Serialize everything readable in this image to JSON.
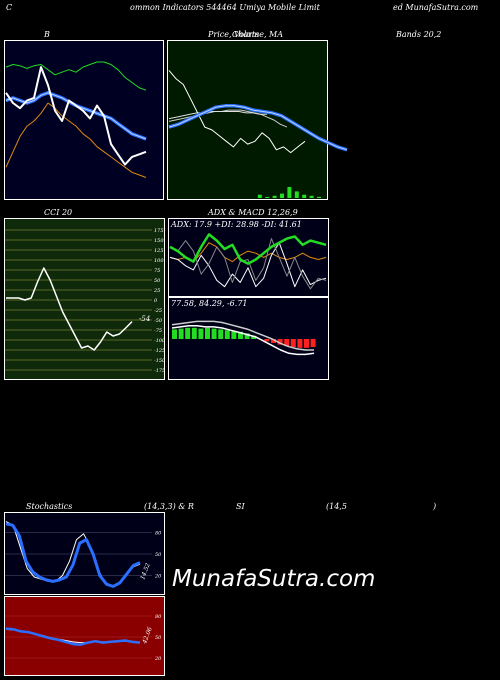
{
  "header": {
    "left": "C",
    "center": "ommon  Indicators 544464  Umiya  Mobile  Limit",
    "right": "ed MunafaSutra.com"
  },
  "labels": {
    "bb_title": "B",
    "price_title": "Price,  Volume,  MA",
    "price_overlap": "Charts",
    "bands_title": "Bands 20,2",
    "cci_title": "CCI 20",
    "adx_title": "ADX  & MACD 12,26,9",
    "adx_values": "ADX: 17.9 +DI: 28.98 -DI: 41.61",
    "macd_values": "77.58,  84.29,  -6.71",
    "cci_value": "-54",
    "stoch_left": "Stochastics",
    "stoch_mid": "(14,3,3) & R",
    "stoch_si": "SI",
    "stoch_params": "(14,5",
    "stoch_close": ")",
    "stoch_value": "14.52",
    "rsi_value": "42.06"
  },
  "watermark": "MunafaSutra.com",
  "colors": {
    "bb_bg": "#000022",
    "price_bg": "#001a00",
    "cci_bg": "#0f2a0a",
    "adx_bg": "#000018",
    "stoch_bg": "#000018",
    "rsi_bg": "#8a0000",
    "blue": "#2a6fff",
    "green": "#22dd22",
    "orange": "#e08a10",
    "red": "#ff2020"
  },
  "chart_data": [
    {
      "type": "line",
      "name_hint": "bollinger",
      "series": [
        {
          "values": [
            82,
            84,
            83,
            81,
            83,
            84,
            80,
            76,
            78,
            80,
            78,
            82,
            84,
            86,
            86,
            84,
            80,
            74,
            70,
            66,
            64
          ]
        },
        {
          "values": [
            56,
            58,
            56,
            54,
            56,
            60,
            62,
            60,
            58,
            55,
            52,
            50,
            48,
            46,
            44,
            42,
            38,
            34,
            30,
            28,
            26
          ]
        },
        {
          "values": [
            4,
            16,
            28,
            36,
            40,
            46,
            54,
            50,
            44,
            40,
            36,
            30,
            26,
            20,
            16,
            12,
            8,
            4,
            0,
            -2,
            -4
          ]
        },
        {
          "values": [
            62,
            54,
            50,
            56,
            58,
            82,
            68,
            48,
            40,
            56,
            52,
            48,
            42,
            52,
            44,
            22,
            14,
            6,
            12,
            14,
            16
          ]
        }
      ]
    },
    {
      "type": "line",
      "name_hint": "price_volume_ma",
      "series": [
        {
          "values": [
            60,
            54,
            50,
            40,
            30,
            20,
            18,
            14,
            10,
            6,
            12,
            8,
            10,
            16,
            12,
            4,
            6,
            2,
            6,
            10
          ]
        },
        {
          "values": [
            20,
            22,
            25,
            28,
            31,
            34,
            35,
            35,
            34,
            32,
            31,
            30,
            28,
            24,
            20,
            16,
            12,
            9,
            6,
            4
          ]
        },
        {
          "values": [
            24,
            25,
            26,
            27,
            28,
            29,
            30,
            31,
            31,
            32,
            32,
            32,
            31,
            30,
            29,
            27,
            25,
            22,
            20
          ]
        },
        {
          "values": [
            26,
            27,
            28,
            29,
            30,
            30,
            31,
            31,
            31,
            31,
            31,
            30,
            30,
            29,
            29
          ]
        }
      ],
      "volume": [
        0,
        0,
        0,
        0,
        0,
        0,
        0,
        0,
        0,
        0,
        0,
        0,
        3,
        1,
        2,
        4,
        10,
        6,
        3,
        2,
        1
      ]
    },
    {
      "type": "line",
      "name_hint": "cci",
      "series": [
        {
          "values": [
            5,
            5,
            5,
            0,
            5,
            45,
            80,
            50,
            10,
            -30,
            -60,
            -90,
            -120,
            -115,
            -125,
            -105,
            -80,
            -90,
            -85,
            -70,
            -54
          ]
        }
      ],
      "ylim": [
        -175,
        175
      ],
      "ticks": [
        175,
        150,
        125,
        100,
        75,
        50,
        25,
        0,
        -25,
        -50,
        -75,
        -100,
        -125,
        -150,
        -175
      ]
    },
    {
      "type": "line",
      "name_hint": "adx",
      "series": [
        {
          "values": [
            30,
            28,
            30,
            26,
            34,
            44,
            40,
            30,
            26,
            32,
            36,
            34,
            30,
            34,
            30,
            28,
            30,
            34,
            30,
            28,
            30
          ]
        },
        {
          "values": [
            40,
            36,
            30,
            26,
            40,
            52,
            46,
            38,
            42,
            28,
            24,
            28,
            34,
            40,
            44,
            48,
            50,
            42,
            46,
            44,
            42
          ]
        },
        {
          "values": [
            30,
            28,
            22,
            18,
            32,
            22,
            8,
            2,
            14,
            6,
            20,
            2,
            10,
            32,
            44,
            24,
            2,
            18,
            4,
            8,
            10
          ]
        },
        {
          "values": [
            40,
            36,
            46,
            36,
            14,
            24,
            40,
            30,
            6,
            26,
            28,
            8,
            20,
            48,
            30,
            12,
            30,
            12,
            0,
            10,
            8
          ]
        }
      ]
    },
    {
      "type": "bar",
      "name_hint": "macd",
      "histogram": [
        12,
        13,
        14,
        14,
        13,
        14,
        13,
        12,
        11,
        10,
        9,
        7,
        4,
        0,
        -3,
        -5,
        -7,
        -9,
        -10,
        -11,
        -11,
        -10
      ],
      "series": [
        {
          "values": [
            10,
            11,
            12,
            12,
            11,
            11,
            10,
            8,
            6,
            4,
            2,
            -2,
            -6,
            -10,
            -13,
            -14,
            -14,
            -13
          ]
        },
        {
          "values": [
            13,
            14,
            15,
            16,
            16,
            16,
            15,
            13,
            11,
            9,
            6,
            3,
            0,
            -4,
            -7,
            -9,
            -10,
            -10
          ]
        }
      ]
    },
    {
      "type": "line",
      "name_hint": "stochastics",
      "series": [
        {
          "values": [
            92,
            90,
            75,
            40,
            25,
            18,
            14,
            12,
            14,
            18,
            35,
            65,
            70,
            50,
            20,
            8,
            5,
            10,
            22,
            34,
            38
          ]
        },
        {
          "values": [
            95,
            90,
            60,
            30,
            18,
            15,
            12,
            12,
            20,
            40,
            70,
            78,
            60,
            30,
            10,
            5,
            8,
            20,
            32,
            36
          ]
        }
      ],
      "ticks": [
        80,
        50,
        20
      ]
    },
    {
      "type": "line",
      "name_hint": "rsi",
      "series": [
        {
          "values": [
            62,
            61,
            58,
            57,
            54,
            51,
            48,
            46,
            43,
            40,
            39,
            42,
            44,
            42,
            43,
            44,
            45,
            43,
            42
          ]
        },
        {
          "values": [
            61,
            60,
            59,
            57,
            54,
            52,
            49,
            47,
            45,
            43,
            42,
            42,
            43,
            43,
            43,
            44,
            44,
            43,
            42
          ]
        }
      ],
      "ticks": [
        80,
        50,
        20
      ]
    }
  ]
}
